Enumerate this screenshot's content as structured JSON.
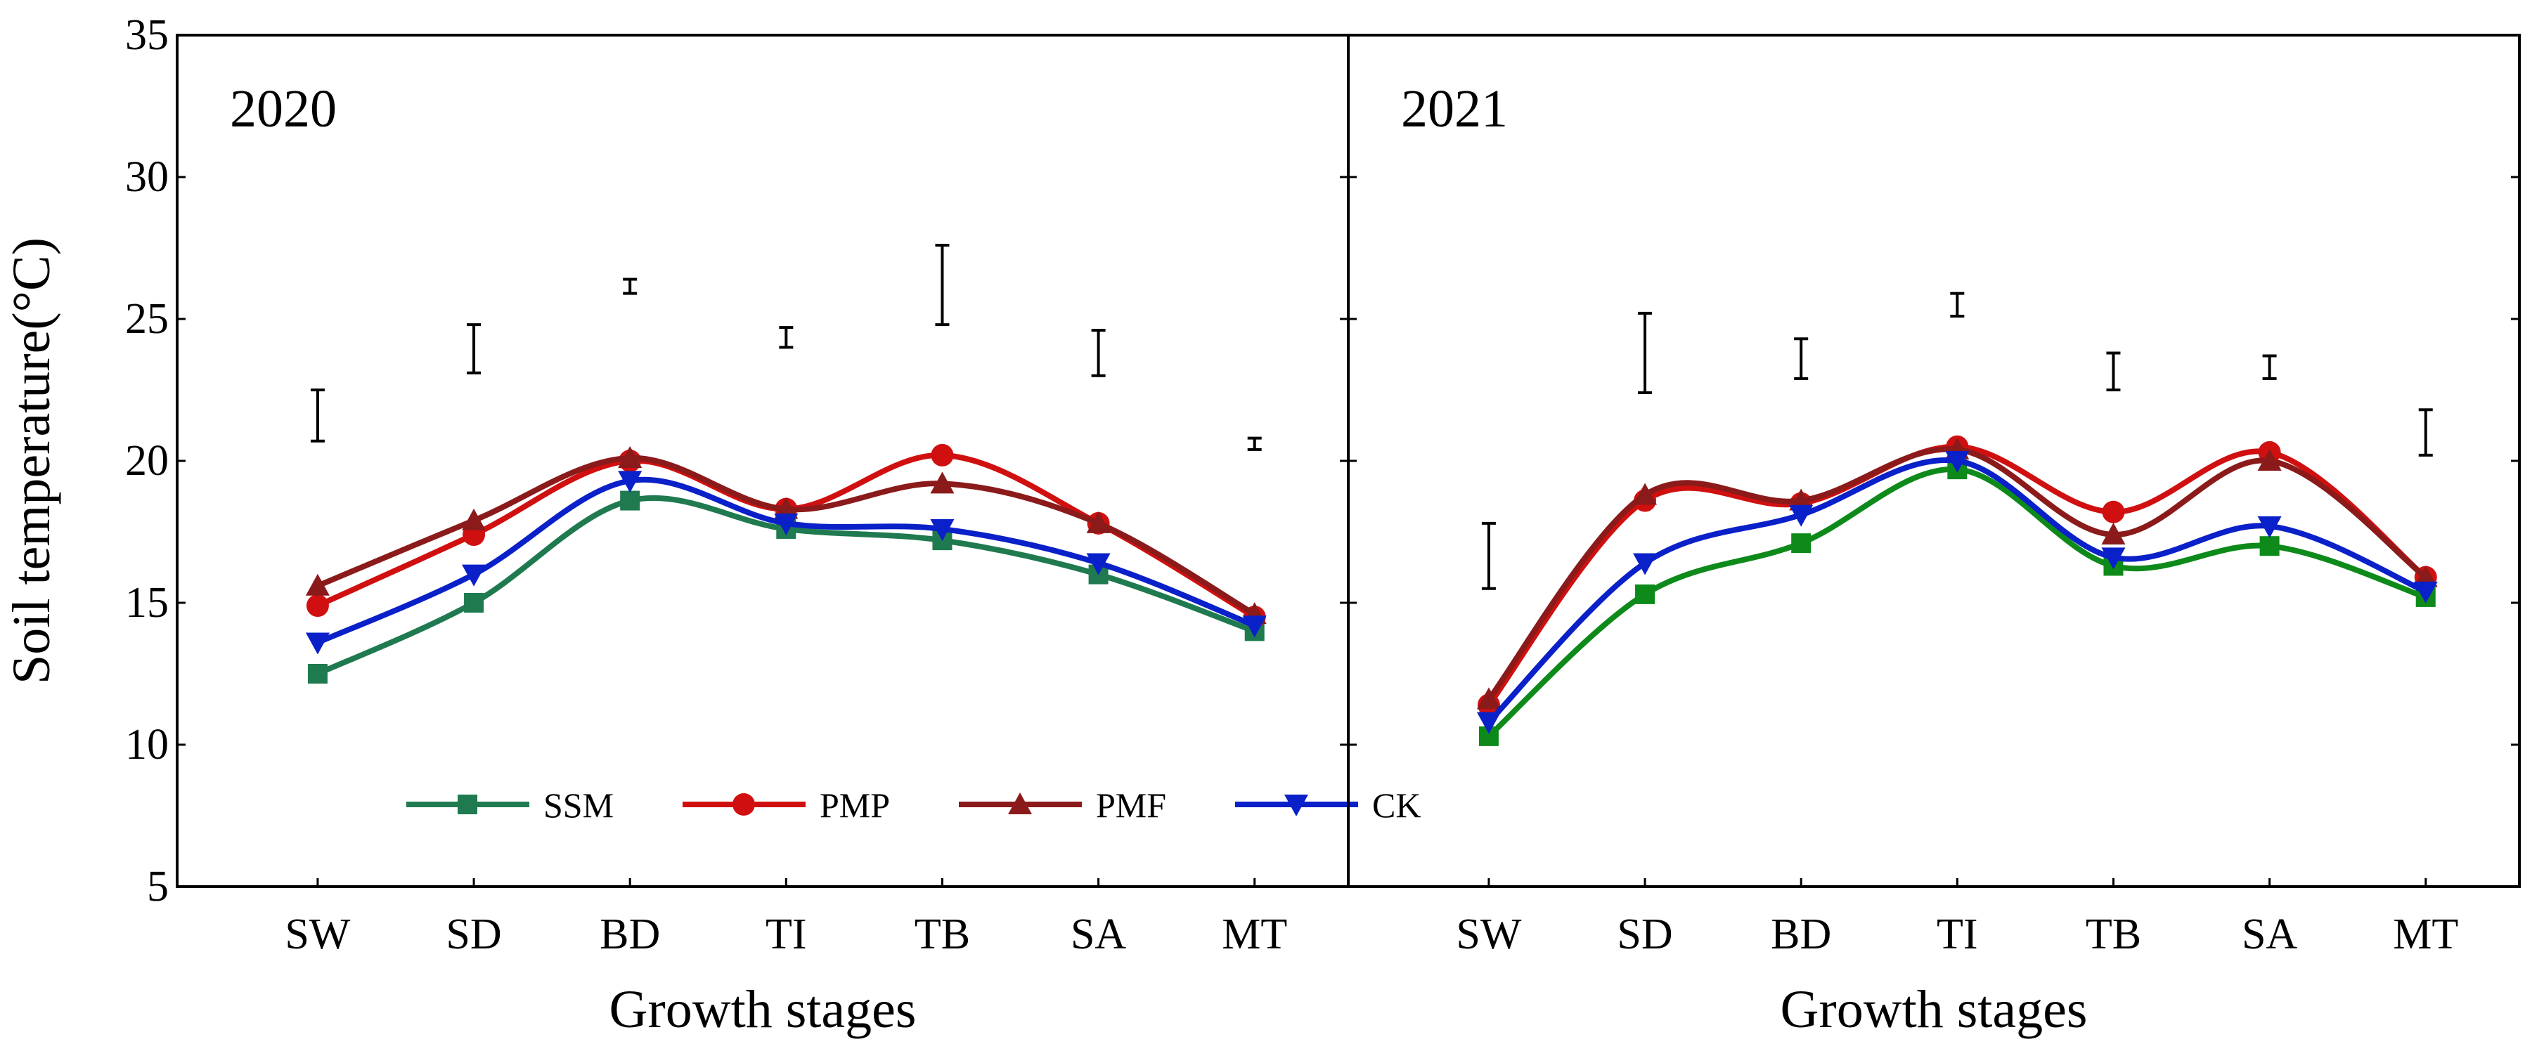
{
  "chart_data": [
    {
      "type": "line",
      "title": "2020",
      "xlabel": "Growth stages",
      "ylabel": "Soil temperature(°C)",
      "ylim": [
        5,
        35
      ],
      "yticks": [
        "5",
        "10",
        "15",
        "20",
        "25",
        "30",
        "35"
      ],
      "categories": [
        "SW",
        "SD",
        "BD",
        "TI",
        "TB",
        "SA",
        "MT"
      ],
      "series": [
        {
          "name": "SSM",
          "color": "#1f7a4f",
          "marker": "square",
          "values": [
            12.5,
            15.0,
            18.6,
            17.6,
            17.2,
            16.0,
            14.0
          ]
        },
        {
          "name": "PMP",
          "color": "#d01010",
          "marker": "circle",
          "values": [
            14.9,
            17.4,
            20.0,
            18.3,
            20.2,
            17.8,
            14.5
          ]
        },
        {
          "name": "PMF",
          "color": "#8b1a1a",
          "marker": "triangle-up",
          "values": [
            15.6,
            17.9,
            20.1,
            18.3,
            19.2,
            17.8,
            14.6
          ]
        },
        {
          "name": "CK",
          "color": "#0a20c8",
          "marker": "triangle-down",
          "values": [
            13.6,
            16.0,
            19.3,
            17.8,
            17.6,
            16.4,
            14.2
          ]
        }
      ],
      "error_bars": [
        {
          "category": "SW",
          "low": 20.7,
          "high": 22.5
        },
        {
          "category": "SD",
          "low": 23.1,
          "high": 24.8
        },
        {
          "category": "BD",
          "low": 25.9,
          "high": 26.4
        },
        {
          "category": "TI",
          "low": 24.0,
          "high": 24.7
        },
        {
          "category": "TB",
          "low": 24.8,
          "high": 27.6
        },
        {
          "category": "SA",
          "low": 23.0,
          "high": 24.6
        },
        {
          "category": "MT",
          "low": 20.4,
          "high": 20.8
        }
      ],
      "legend": {
        "placement": "bottom-center",
        "entries": [
          "SSM",
          "PMP",
          "PMF",
          "CK"
        ]
      }
    },
    {
      "type": "line",
      "title": "2021",
      "xlabel": "Growth stages",
      "ylim": [
        5,
        35
      ],
      "categories": [
        "SW",
        "SD",
        "BD",
        "TI",
        "TB",
        "SA",
        "MT"
      ],
      "series": [
        {
          "name": "SSM",
          "color": "#0e8a1a",
          "marker": "square",
          "values": [
            10.3,
            15.3,
            17.1,
            19.7,
            16.3,
            17.0,
            15.2
          ]
        },
        {
          "name": "PMP",
          "color": "#d01010",
          "marker": "circle",
          "values": [
            11.4,
            18.6,
            18.5,
            20.5,
            18.2,
            20.3,
            15.9
          ]
        },
        {
          "name": "PMF",
          "color": "#8b1a1a",
          "marker": "triangle-up",
          "values": [
            11.6,
            18.8,
            18.6,
            20.4,
            17.4,
            20.0,
            15.9
          ]
        },
        {
          "name": "CK",
          "color": "#0a20c8",
          "marker": "triangle-down",
          "values": [
            10.8,
            16.4,
            18.1,
            20.0,
            16.6,
            17.7,
            15.4
          ]
        }
      ],
      "error_bars": [
        {
          "category": "SW",
          "low": 15.5,
          "high": 17.8
        },
        {
          "category": "SD",
          "low": 22.4,
          "high": 25.2
        },
        {
          "category": "BD",
          "low": 22.9,
          "high": 24.3
        },
        {
          "category": "TI",
          "low": 25.1,
          "high": 25.9
        },
        {
          "category": "TB",
          "low": 22.5,
          "high": 23.8
        },
        {
          "category": "SA",
          "low": 22.9,
          "high": 23.7
        },
        {
          "category": "MT",
          "low": 20.2,
          "high": 21.8
        }
      ]
    }
  ]
}
